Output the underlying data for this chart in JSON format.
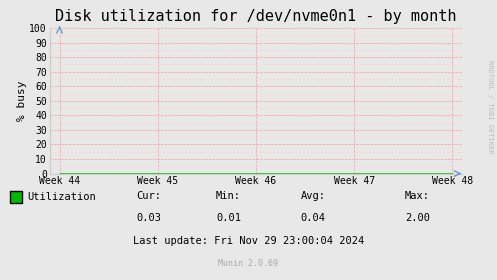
{
  "title": "Disk utilization for /dev/nvme0n1 - by month",
  "ylabel": "% busy",
  "background_color": "#e8e8e8",
  "plot_bg_color": "#e8e8e8",
  "grid_color_major": "#ff9999",
  "grid_color_minor": "#ffcccc",
  "line_color": "#00cc00",
  "x_tick_labels": [
    "Week 44",
    "Week 45",
    "Week 46",
    "Week 47",
    "Week 48"
  ],
  "x_tick_positions": [
    0,
    1,
    2,
    3,
    4
  ],
  "ylim": [
    0,
    100
  ],
  "yticks": [
    0,
    10,
    20,
    30,
    40,
    50,
    60,
    70,
    80,
    90,
    100
  ],
  "legend_label": "Utilization",
  "legend_color": "#00bb00",
  "stats_cur": "0.03",
  "stats_min": "0.01",
  "stats_avg": "0.04",
  "stats_max": "2.00",
  "last_update": "Last update: Fri Nov 29 23:00:04 2024",
  "munin_version": "Munin 2.0.69",
  "rrdtool_label": "RRDTOOL / TOBI OETIKER",
  "title_fontsize": 11,
  "axis_label_fontsize": 8,
  "tick_fontsize": 7,
  "stats_fontsize": 7.5,
  "munin_fontsize": 6,
  "rrdtool_fontsize": 5,
  "arrow_color": "#6699cc",
  "spine_color": "#cccccc"
}
